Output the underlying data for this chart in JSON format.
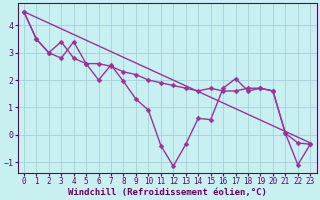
{
  "xlabel": "Windchill (Refroidissement éolien,°C)",
  "bg_color": "#c8f0f0",
  "line_color": "#993399",
  "grid_color": "#a0c8d8",
  "axis_color": "#660066",
  "xlim": [
    -0.5,
    23.5
  ],
  "ylim": [
    -1.4,
    4.8
  ],
  "xticks": [
    0,
    1,
    2,
    3,
    4,
    5,
    6,
    7,
    8,
    9,
    10,
    11,
    12,
    13,
    14,
    15,
    16,
    17,
    18,
    19,
    20,
    21,
    22,
    23
  ],
  "yticks": [
    -1,
    0,
    1,
    2,
    3,
    4
  ],
  "trend_x": [
    0,
    23
  ],
  "trend_y": [
    4.5,
    -0.3
  ],
  "series1_x": [
    0,
    1,
    2,
    3,
    4,
    5,
    6,
    7,
    8,
    9,
    10,
    11,
    12,
    13,
    14,
    15,
    16,
    17,
    18,
    19,
    20,
    21,
    22,
    23
  ],
  "series1_y": [
    4.5,
    3.5,
    3.0,
    3.4,
    2.8,
    2.6,
    2.6,
    2.5,
    2.3,
    2.2,
    2.0,
    1.9,
    1.8,
    1.7,
    1.6,
    1.7,
    1.6,
    1.6,
    1.7,
    1.7,
    1.6,
    0.05,
    -0.3,
    -0.35
  ],
  "series2_x": [
    0,
    1,
    2,
    3,
    4,
    5,
    6,
    7,
    8,
    9,
    10,
    11,
    12,
    13,
    14,
    15,
    16,
    17,
    18,
    19,
    20,
    21,
    22,
    23
  ],
  "series2_y": [
    4.5,
    3.5,
    3.0,
    2.8,
    3.4,
    2.6,
    2.0,
    2.55,
    1.95,
    1.3,
    0.9,
    -0.4,
    -1.15,
    -0.35,
    0.6,
    0.55,
    1.7,
    2.05,
    1.6,
    1.7,
    1.6,
    0.05,
    -1.1,
    -0.35
  ],
  "marker_size": 2.5,
  "line_width": 1.0,
  "tick_fontsize": 5.5,
  "label_fontsize": 6.5
}
